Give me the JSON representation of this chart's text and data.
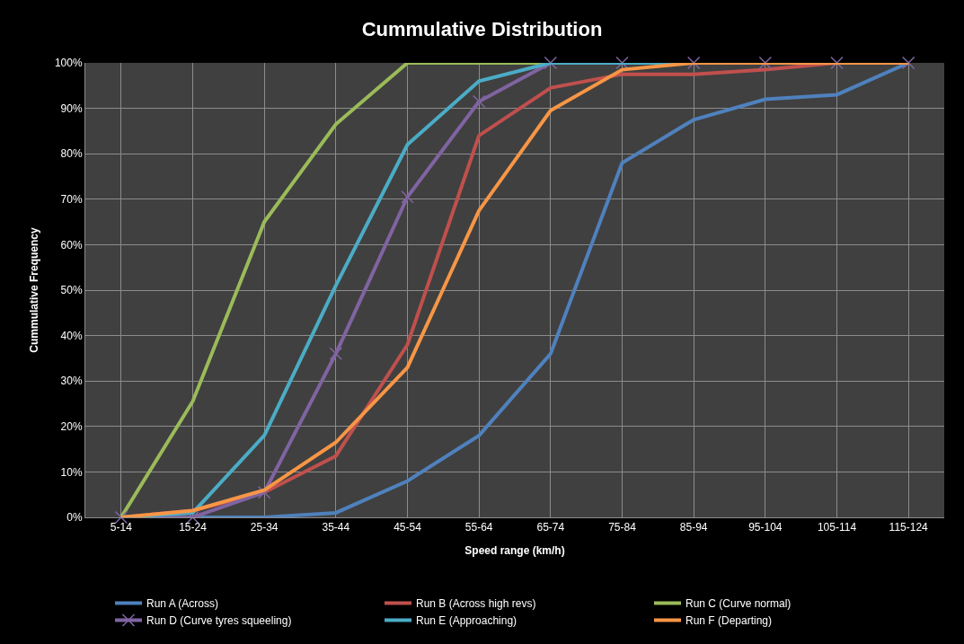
{
  "chart_data": {
    "type": "line",
    "title": "Cummulative Distribution",
    "xlabel": "Speed range (km/h)",
    "ylabel": "Cummulative Frequency",
    "categories": [
      "5-14",
      "15-24",
      "25-34",
      "35-44",
      "45-54",
      "55-64",
      "65-74",
      "75-84",
      "85-94",
      "95-104",
      "105-114",
      "115-124"
    ],
    "ylim": [
      0,
      100
    ],
    "yticks": [
      {
        "value": 0,
        "label": "0%"
      },
      {
        "value": 10,
        "label": "10%"
      },
      {
        "value": 20,
        "label": "20%"
      },
      {
        "value": 30,
        "label": "30%"
      },
      {
        "value": 40,
        "label": "40%"
      },
      {
        "value": 50,
        "label": "50%"
      },
      {
        "value": 60,
        "label": "60%"
      },
      {
        "value": 70,
        "label": "70%"
      },
      {
        "value": 80,
        "label": "80%"
      },
      {
        "value": 90,
        "label": "90%"
      },
      {
        "value": 100,
        "label": "100%"
      }
    ],
    "grid": true,
    "legend": "bottom",
    "marker": "none",
    "line_style": "solid",
    "series": [
      {
        "name": "Run A (Across)",
        "color": "#4f81bd",
        "values": [
          0,
          0,
          0,
          1,
          8,
          18,
          36,
          78,
          87.5,
          92,
          93,
          100
        ]
      },
      {
        "name": "Run B (Across high revs)",
        "color": "#c0504d",
        "values": [
          0,
          1.5,
          5.5,
          13.5,
          38,
          84,
          94.5,
          97.5,
          97.5,
          98.5,
          100,
          100
        ]
      },
      {
        "name": "Run C (Curve normal)",
        "color": "#9bbb59",
        "values": [
          0,
          25.5,
          65,
          86.5,
          100,
          100,
          100,
          100,
          100,
          100,
          null,
          null
        ]
      },
      {
        "name": "Run D (Curve tyres squeeling)",
        "color": "#8064a2",
        "marker": "cross",
        "values": [
          0,
          0,
          5.5,
          36,
          70.5,
          91.5,
          100,
          100,
          100,
          100,
          100,
          100
        ]
      },
      {
        "name": "Run E (Approaching)",
        "color": "#4bacc6",
        "values": [
          0,
          1,
          18,
          51,
          82,
          96,
          100,
          100,
          100,
          100,
          100,
          100
        ]
      },
      {
        "name": "Run F (Departing)",
        "color": "#f79646",
        "values": [
          0,
          1.5,
          6,
          16.5,
          33,
          67.5,
          89.5,
          98.5,
          100,
          100,
          100,
          100
        ]
      }
    ]
  }
}
